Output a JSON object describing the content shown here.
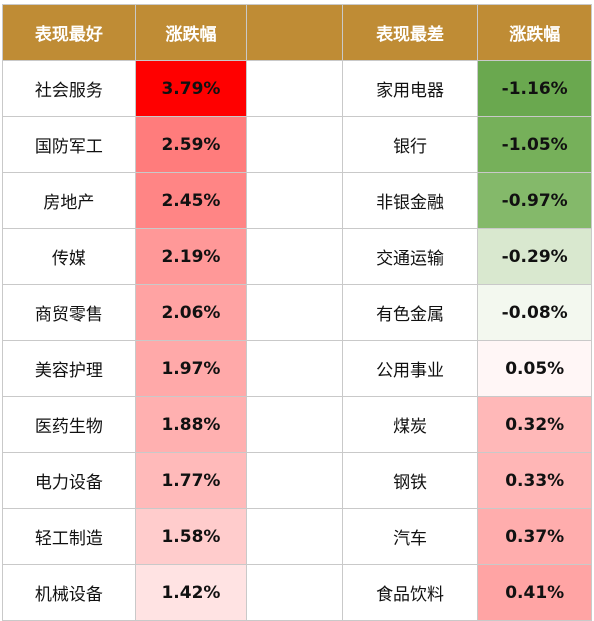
{
  "headers": {
    "best_name": "表现最好",
    "best_change": "涨跌幅",
    "worst_name": "表现最差",
    "worst_change": "涨跌幅"
  },
  "rows": [
    {
      "best_name": "社会服务",
      "best_change": "3.79%",
      "best_color": "#ff0000",
      "worst_name": "家用电器",
      "worst_change": "-1.16%",
      "worst_color": "#6aa84f"
    },
    {
      "best_name": "国防军工",
      "best_change": "2.59%",
      "best_color": "#ff7c7c",
      "worst_name": "银行",
      "worst_change": "-1.05%",
      "worst_color": "#76b05a"
    },
    {
      "best_name": "房地产",
      "best_change": "2.45%",
      "best_color": "#ff8585",
      "worst_name": "非银金融",
      "worst_change": "-0.97%",
      "worst_color": "#84b96a"
    },
    {
      "best_name": "传媒",
      "best_change": "2.19%",
      "best_color": "#ff9898",
      "worst_name": "交通运输",
      "worst_change": "-0.29%",
      "worst_color": "#d9e8cf"
    },
    {
      "best_name": "商贸零售",
      "best_change": "2.06%",
      "best_color": "#ffa3a3",
      "worst_name": "有色金属",
      "worst_change": "-0.08%",
      "worst_color": "#f3f8ef"
    },
    {
      "best_name": "美容护理",
      "best_change": "1.97%",
      "best_color": "#ffa9a9",
      "worst_name": "公用事业",
      "worst_change": "0.05%",
      "worst_color": "#fff6f6"
    },
    {
      "best_name": "医药生物",
      "best_change": "1.88%",
      "best_color": "#ffb0b0",
      "worst_name": "煤炭",
      "worst_change": "0.32%",
      "worst_color": "#ffb8b8"
    },
    {
      "best_name": "电力设备",
      "best_change": "1.77%",
      "best_color": "#ffbaba",
      "worst_name": "钢铁",
      "worst_change": "0.33%",
      "worst_color": "#ffb6b6"
    },
    {
      "best_name": "轻工制造",
      "best_change": "1.58%",
      "best_color": "#ffcccc",
      "worst_name": "汽车",
      "worst_change": "0.37%",
      "worst_color": "#ffadad"
    },
    {
      "best_name": "机械设备",
      "best_change": "1.42%",
      "best_color": "#ffe3e3",
      "worst_name": "食品饮料",
      "worst_change": "0.41%",
      "worst_color": "#ffa4a4"
    }
  ]
}
